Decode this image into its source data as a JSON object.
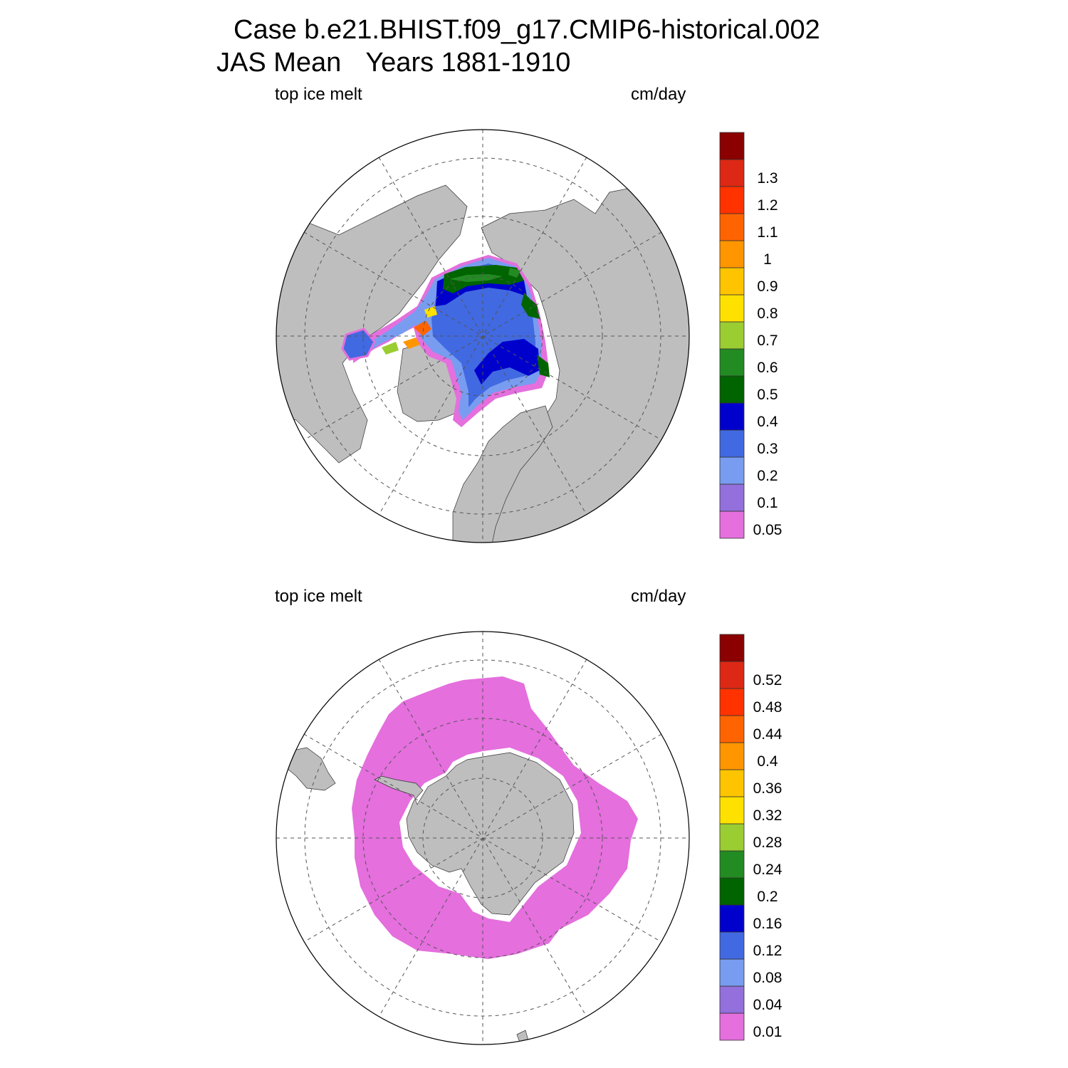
{
  "title": {
    "line1": "Case b.e21.BHIST.f09_g17.CMIP6-historical.002",
    "line2_left": "JAS Mean",
    "line2_right": "Years 1881-1910"
  },
  "panels": [
    {
      "id": "north",
      "hemisphere": "Northern",
      "variable_label": "top ice melt",
      "units_label": "cm/day",
      "colorbar": {
        "levels": [
          "0.05",
          "0.1",
          "0.2",
          "0.3",
          "0.4",
          "0.5",
          "0.6",
          "0.7",
          "0.8",
          "0.9",
          "1",
          "1.1",
          "1.2",
          "1.3"
        ]
      }
    },
    {
      "id": "south",
      "hemisphere": "Southern",
      "variable_label": "top ice melt",
      "units_label": "cm/day",
      "colorbar": {
        "levels": [
          "0.01",
          "0.04",
          "0.08",
          "0.12",
          "0.16",
          "0.2",
          "0.24",
          "0.28",
          "0.32",
          "0.36",
          "0.4",
          "0.44",
          "0.48",
          "0.52"
        ]
      }
    }
  ],
  "colors": {
    "palette": [
      "#e46fdd",
      "#9370db",
      "#789cf0",
      "#4169e1",
      "#0000cd",
      "#006400",
      "#228b22",
      "#9acd32",
      "#ffe100",
      "#ffc400",
      "#ff9600",
      "#ff6400",
      "#ff3200",
      "#dc2814",
      "#8b0000"
    ],
    "land": "#bebebe",
    "ocean": "#ffffff",
    "grid": "#555555"
  }
}
